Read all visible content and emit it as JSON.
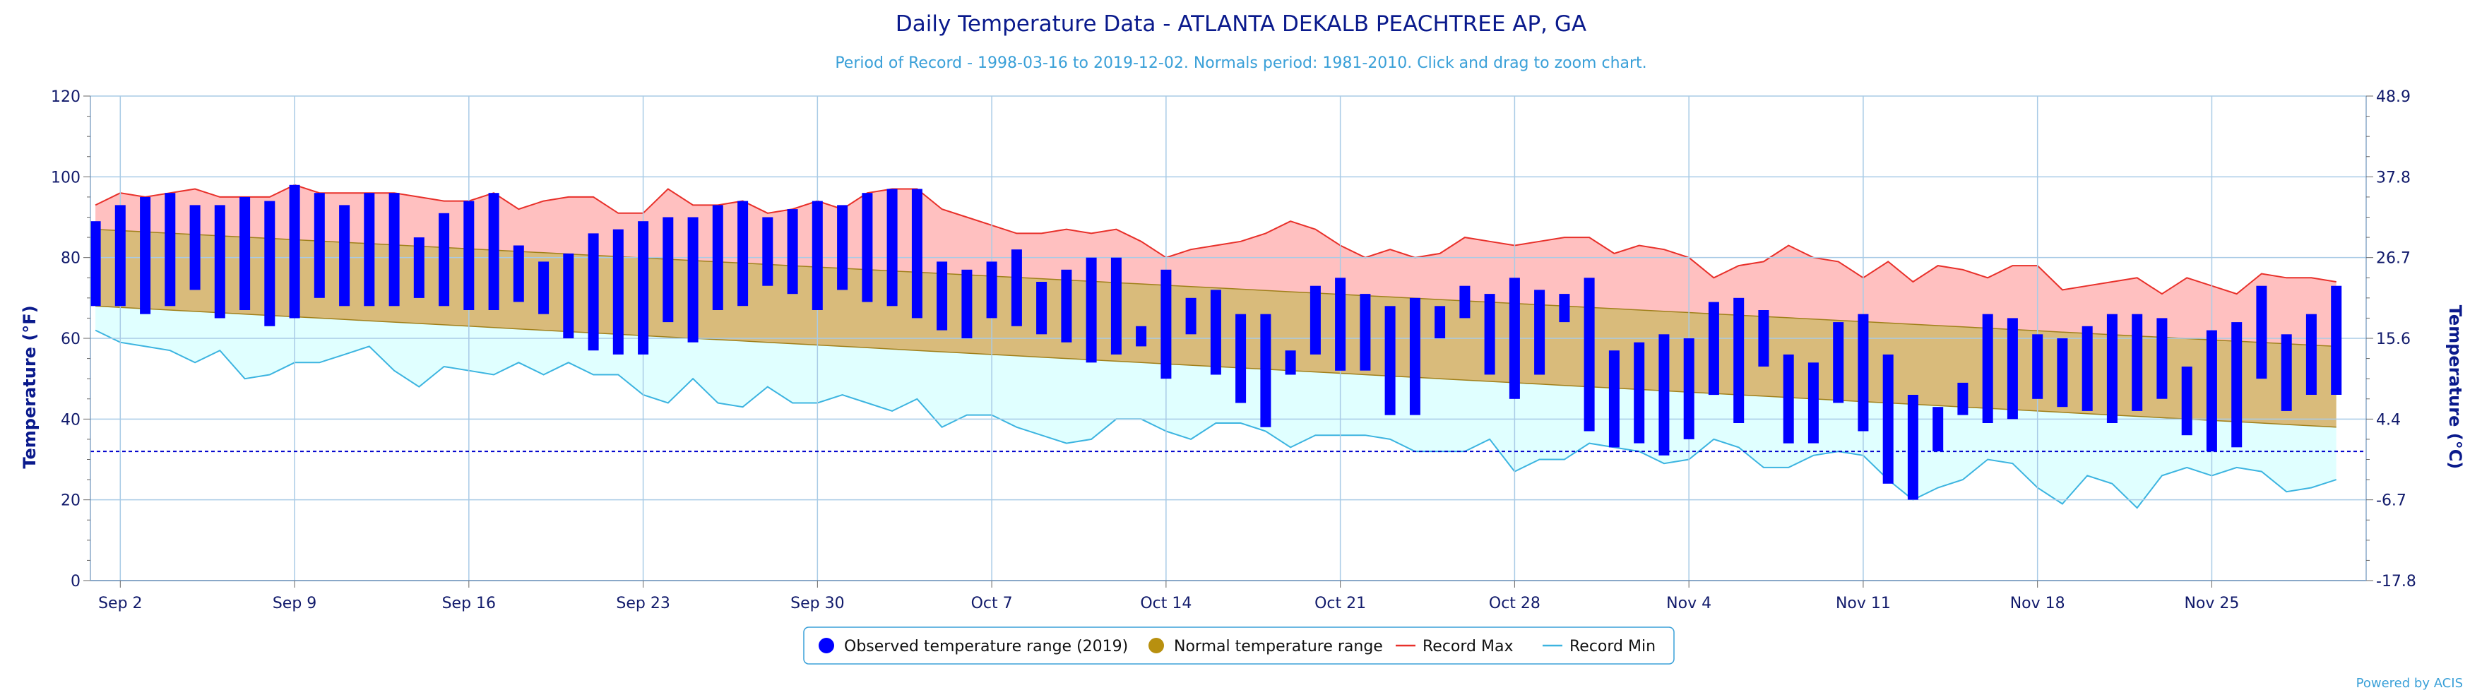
{
  "colors": {
    "observed": "#0000ff",
    "normal": "#d9bb7b",
    "normal_edge": "#a0801a",
    "record_max_fill": "#ffc0c0",
    "record_max_line": "#e8302a",
    "record_min_fill": "#e0ffff",
    "record_min_line": "#3cb4e0",
    "freeze": "#0000cc",
    "grid": "#a9cbe6"
  },
  "credit": "Powered by ACIS",
  "chart_data": {
    "type": "bar",
    "title": "Daily Temperature Data - ATLANTA DEKALB PEACHTREE AP, GA",
    "subtitle": "Period of Record - 1998-03-16 to 2019-12-02. Normals period: 1981-2010. Click and drag to zoom chart.",
    "ylabel": "Temperature (°F)",
    "ylabel_right": "Temperature (°C)",
    "ylim": [
      0,
      120
    ],
    "yticks": [
      0,
      20,
      40,
      60,
      80,
      100,
      120
    ],
    "yticks_right": [
      "-17.8",
      "-6.7",
      "4.4",
      "15.6",
      "26.7",
      "37.8",
      "48.9"
    ],
    "grid": true,
    "legend_position": "bottom",
    "freeze_line": 32,
    "x_start": "Sep 1",
    "x_range_days": [
      -0.2,
      91.2
    ],
    "xticks": [
      {
        "label": "Sep 2",
        "day": 1
      },
      {
        "label": "Sep 9",
        "day": 8
      },
      {
        "label": "Sep 16",
        "day": 15
      },
      {
        "label": "Sep 23",
        "day": 22
      },
      {
        "label": "Sep 30",
        "day": 29
      },
      {
        "label": "Oct 7",
        "day": 36
      },
      {
        "label": "Oct 14",
        "day": 43
      },
      {
        "label": "Oct 21",
        "day": 50
      },
      {
        "label": "Oct 28",
        "day": 57
      },
      {
        "label": "Nov 4",
        "day": 64
      },
      {
        "label": "Nov 11",
        "day": 71
      },
      {
        "label": "Nov 18",
        "day": 78
      },
      {
        "label": "Nov 25",
        "day": 85
      }
    ],
    "legend": [
      {
        "key": "observed",
        "label": "Observed temperature range (2019)"
      },
      {
        "key": "normal",
        "label": "Normal temperature range"
      },
      {
        "key": "record_max",
        "label": "Record Max"
      },
      {
        "key": "record_min",
        "label": "Record Min"
      }
    ],
    "normal_high": {
      "start": 87,
      "end": 58
    },
    "normal_low": {
      "start": 68,
      "end": 38
    },
    "record_max": [
      93,
      96,
      95,
      96,
      97,
      95,
      95,
      95,
      98,
      96,
      96,
      96,
      96,
      95,
      94,
      94,
      96,
      92,
      94,
      95,
      95,
      91,
      91,
      97,
      93,
      93,
      94,
      91,
      92,
      94,
      92,
      96,
      97,
      97,
      92,
      90,
      88,
      86,
      86,
      87,
      86,
      87,
      84,
      80,
      82,
      83,
      84,
      86,
      89,
      87,
      83,
      80,
      82,
      80,
      81,
      85,
      84,
      83,
      84,
      85,
      85,
      81,
      83,
      82,
      80,
      75,
      78,
      79,
      83,
      80,
      79,
      75,
      79,
      74,
      78,
      77,
      75,
      78,
      78,
      72,
      73,
      74,
      75,
      71,
      75,
      73,
      71,
      76,
      75,
      75,
      74
    ],
    "record_min": [
      62,
      59,
      58,
      57,
      54,
      57,
      50,
      51,
      54,
      54,
      56,
      58,
      52,
      48,
      53,
      52,
      51,
      54,
      51,
      54,
      51,
      51,
      46,
      44,
      50,
      44,
      43,
      48,
      44,
      44,
      46,
      44,
      42,
      45,
      38,
      41,
      41,
      38,
      36,
      34,
      35,
      40,
      40,
      37,
      35,
      39,
      39,
      37,
      33,
      36,
      36,
      36,
      35,
      32,
      32,
      32,
      35,
      27,
      30,
      30,
      34,
      33,
      32,
      29,
      30,
      35,
      33,
      28,
      28,
      31,
      32,
      31,
      25,
      20,
      23,
      25,
      30,
      29,
      23,
      19,
      26,
      24,
      18,
      26,
      28,
      26,
      28,
      27,
      22,
      23,
      25
    ],
    "observed": [
      {
        "day": 0,
        "lo": 68,
        "hi": 89
      },
      {
        "day": 1,
        "lo": 68,
        "hi": 93
      },
      {
        "day": 2,
        "lo": 66,
        "hi": 95
      },
      {
        "day": 3,
        "lo": 68,
        "hi": 96
      },
      {
        "day": 4,
        "lo": 72,
        "hi": 93
      },
      {
        "day": 5,
        "lo": 65,
        "hi": 93
      },
      {
        "day": 6,
        "lo": 67,
        "hi": 95
      },
      {
        "day": 7,
        "lo": 63,
        "hi": 94
      },
      {
        "day": 8,
        "lo": 65,
        "hi": 98
      },
      {
        "day": 9,
        "lo": 70,
        "hi": 96
      },
      {
        "day": 10,
        "lo": 68,
        "hi": 93
      },
      {
        "day": 11,
        "lo": 68,
        "hi": 96
      },
      {
        "day": 12,
        "lo": 68,
        "hi": 96
      },
      {
        "day": 13,
        "lo": 70,
        "hi": 85
      },
      {
        "day": 14,
        "lo": 68,
        "hi": 91
      },
      {
        "day": 15,
        "lo": 67,
        "hi": 94
      },
      {
        "day": 16,
        "lo": 67,
        "hi": 96
      },
      {
        "day": 17,
        "lo": 69,
        "hi": 83
      },
      {
        "day": 18,
        "lo": 66,
        "hi": 79
      },
      {
        "day": 19,
        "lo": 60,
        "hi": 81
      },
      {
        "day": 20,
        "lo": 57,
        "hi": 86
      },
      {
        "day": 21,
        "lo": 56,
        "hi": 87
      },
      {
        "day": 22,
        "lo": 56,
        "hi": 89
      },
      {
        "day": 23,
        "lo": 64,
        "hi": 90
      },
      {
        "day": 24,
        "lo": 59,
        "hi": 90
      },
      {
        "day": 25,
        "lo": 67,
        "hi": 93
      },
      {
        "day": 26,
        "lo": 68,
        "hi": 94
      },
      {
        "day": 27,
        "lo": 73,
        "hi": 90
      },
      {
        "day": 28,
        "lo": 71,
        "hi": 92
      },
      {
        "day": 29,
        "lo": 67,
        "hi": 94
      },
      {
        "day": 30,
        "lo": 72,
        "hi": 93
      },
      {
        "day": 31,
        "lo": 69,
        "hi": 96
      },
      {
        "day": 32,
        "lo": 68,
        "hi": 97
      },
      {
        "day": 33,
        "lo": 65,
        "hi": 97
      },
      {
        "day": 34,
        "lo": 62,
        "hi": 79
      },
      {
        "day": 35,
        "lo": 60,
        "hi": 77
      },
      {
        "day": 36,
        "lo": 65,
        "hi": 79
      },
      {
        "day": 37,
        "lo": 63,
        "hi": 82
      },
      {
        "day": 38,
        "lo": 61,
        "hi": 74
      },
      {
        "day": 39,
        "lo": 59,
        "hi": 77
      },
      {
        "day": 40,
        "lo": 54,
        "hi": 80
      },
      {
        "day": 41,
        "lo": 56,
        "hi": 80
      },
      {
        "day": 42,
        "lo": 58,
        "hi": 63
      },
      {
        "day": 43,
        "lo": 50,
        "hi": 77
      },
      {
        "day": 44,
        "lo": 61,
        "hi": 70
      },
      {
        "day": 45,
        "lo": 51,
        "hi": 72
      },
      {
        "day": 46,
        "lo": 44,
        "hi": 66
      },
      {
        "day": 47,
        "lo": 38,
        "hi": 66
      },
      {
        "day": 48,
        "lo": 51,
        "hi": 57
      },
      {
        "day": 49,
        "lo": 56,
        "hi": 73
      },
      {
        "day": 50,
        "lo": 52,
        "hi": 75
      },
      {
        "day": 51,
        "lo": 52,
        "hi": 71
      },
      {
        "day": 52,
        "lo": 41,
        "hi": 68
      },
      {
        "day": 53,
        "lo": 41,
        "hi": 70
      },
      {
        "day": 54,
        "lo": 60,
        "hi": 68
      },
      {
        "day": 55,
        "lo": 65,
        "hi": 73
      },
      {
        "day": 56,
        "lo": 51,
        "hi": 71
      },
      {
        "day": 57,
        "lo": 45,
        "hi": 75
      },
      {
        "day": 58,
        "lo": 51,
        "hi": 72
      },
      {
        "day": 59,
        "lo": 64,
        "hi": 71
      },
      {
        "day": 60,
        "lo": 37,
        "hi": 75
      },
      {
        "day": 61,
        "lo": 33,
        "hi": 57
      },
      {
        "day": 62,
        "lo": 34,
        "hi": 59
      },
      {
        "day": 63,
        "lo": 31,
        "hi": 61
      },
      {
        "day": 64,
        "lo": 35,
        "hi": 60
      },
      {
        "day": 65,
        "lo": 46,
        "hi": 69
      },
      {
        "day": 66,
        "lo": 39,
        "hi": 70
      },
      {
        "day": 67,
        "lo": 53,
        "hi": 67
      },
      {
        "day": 68,
        "lo": 34,
        "hi": 56
      },
      {
        "day": 69,
        "lo": 34,
        "hi": 54
      },
      {
        "day": 70,
        "lo": 44,
        "hi": 64
      },
      {
        "day": 71,
        "lo": 37,
        "hi": 66
      },
      {
        "day": 72,
        "lo": 24,
        "hi": 56
      },
      {
        "day": 73,
        "lo": 20,
        "hi": 46
      },
      {
        "day": 74,
        "lo": 32,
        "hi": 43
      },
      {
        "day": 75,
        "lo": 41,
        "hi": 49
      },
      {
        "day": 76,
        "lo": 39,
        "hi": 66
      },
      {
        "day": 77,
        "lo": 40,
        "hi": 65
      },
      {
        "day": 78,
        "lo": 45,
        "hi": 61
      },
      {
        "day": 79,
        "lo": 43,
        "hi": 60
      },
      {
        "day": 80,
        "lo": 42,
        "hi": 63
      },
      {
        "day": 81,
        "lo": 39,
        "hi": 66
      },
      {
        "day": 82,
        "lo": 42,
        "hi": 66
      },
      {
        "day": 83,
        "lo": 45,
        "hi": 65
      },
      {
        "day": 84,
        "lo": 36,
        "hi": 53
      },
      {
        "day": 85,
        "lo": 32,
        "hi": 62
      },
      {
        "day": 86,
        "lo": 33,
        "hi": 64
      },
      {
        "day": 87,
        "lo": 50,
        "hi": 73
      },
      {
        "day": 88,
        "lo": 42,
        "hi": 61
      },
      {
        "day": 89,
        "lo": 46,
        "hi": 66
      },
      {
        "day": 90,
        "lo": 46,
        "hi": 73
      }
    ]
  }
}
